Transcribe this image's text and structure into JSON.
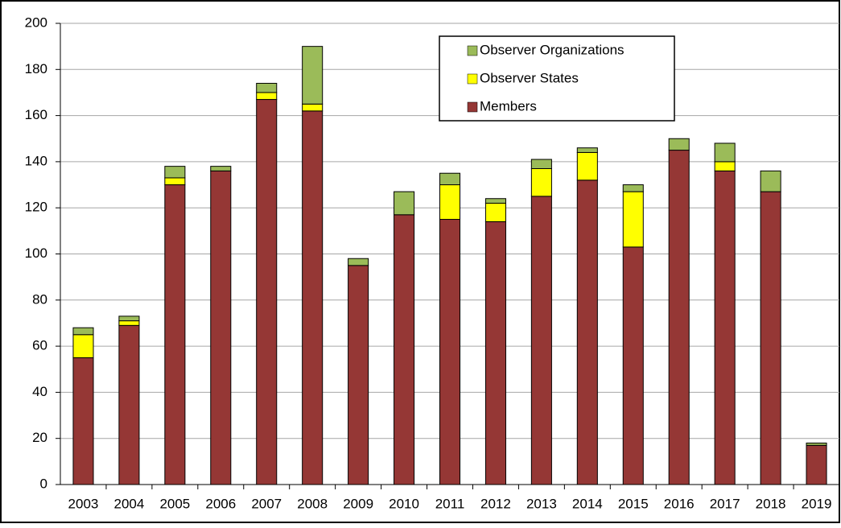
{
  "chart_data": {
    "type": "stacked_bar",
    "categories": [
      "2003",
      "2004",
      "2005",
      "2006",
      "2007",
      "2008",
      "2009",
      "2010",
      "2011",
      "2012",
      "2013",
      "2014",
      "2015",
      "2016",
      "2017",
      "2018",
      "2019"
    ],
    "series": [
      {
        "name": "Members",
        "color": "#953735",
        "values": [
          55,
          69,
          130,
          136,
          167,
          162,
          95,
          117,
          115,
          114,
          125,
          132,
          103,
          145,
          136,
          127,
          17
        ]
      },
      {
        "name": "Observer States",
        "color": "#ffff00",
        "values": [
          10,
          2,
          3,
          0,
          3,
          3,
          0,
          0,
          15,
          8,
          12,
          12,
          24,
          0,
          4,
          0,
          0
        ]
      },
      {
        "name": "Observer Organizations",
        "color": "#9bbb59",
        "values": [
          3,
          2,
          5,
          2,
          4,
          25,
          3,
          10,
          5,
          2,
          4,
          2,
          3,
          5,
          8,
          9,
          1
        ]
      }
    ],
    "ylim": [
      0,
      200
    ],
    "yticks": [
      0,
      20,
      40,
      60,
      80,
      100,
      120,
      140,
      160,
      180,
      200
    ],
    "grid": true,
    "legend": "top-right"
  }
}
